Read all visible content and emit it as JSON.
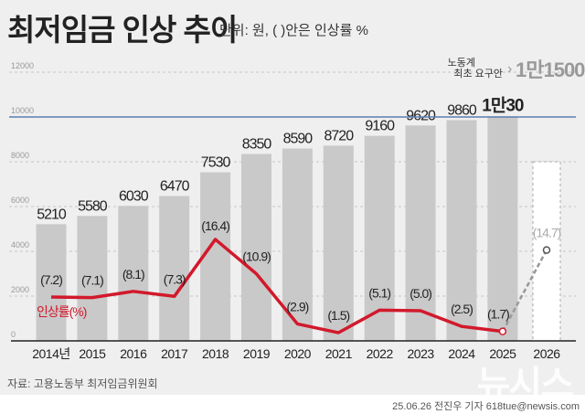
{
  "title": "최저임금 인상 추이",
  "unit_note": "단위: 원, ( )안은 인상률 %",
  "source": "자료: 고용노동부 최저임금위원회",
  "credit": "25.06.26 전진우 기자 618tue@newsis.com",
  "logo": "뉴시스",
  "chart_data": {
    "type": "bar+line",
    "categories": [
      "2014년",
      "2015",
      "2016",
      "2017",
      "2018",
      "2019",
      "2020",
      "2021",
      "2022",
      "2023",
      "2024",
      "2025",
      "2026"
    ],
    "wage": {
      "values": [
        5210,
        5580,
        6030,
        6470,
        7530,
        8350,
        8590,
        8720,
        9160,
        9620,
        9860,
        10030,
        null
      ],
      "labels": [
        "5210",
        "5580",
        "6030",
        "6470",
        "7530",
        "8350",
        "8590",
        "8720",
        "9160",
        "9620",
        "9860",
        "1만30",
        ""
      ]
    },
    "rate": {
      "name": "인상률(%)",
      "values": [
        7.2,
        7.1,
        8.1,
        7.3,
        16.4,
        10.9,
        2.9,
        1.5,
        5.1,
        5.0,
        2.5,
        1.7,
        14.7
      ],
      "labels": [
        "(7.2)",
        "(7.1)",
        "(8.1)",
        "(7.3)",
        "(16.4)",
        "(10.9)",
        "(2.9)",
        "(1.5)",
        "(5.1)",
        "(5.0)",
        "(2.5)",
        "(1.7)",
        "(14.7)"
      ]
    },
    "proposal": {
      "label": "노동계 최초 요구안",
      "value": 11500,
      "value_label": "1만1500",
      "year": "2026"
    },
    "reference_line": 10000,
    "yticks": [
      0,
      2000,
      4000,
      6000,
      8000,
      10000,
      12000
    ],
    "ylim": [
      0,
      12000
    ],
    "colors": {
      "bar": "#c9c9c9",
      "line": "#d2192b",
      "ref": "#5b7fb4",
      "proposal": "#999999"
    }
  }
}
